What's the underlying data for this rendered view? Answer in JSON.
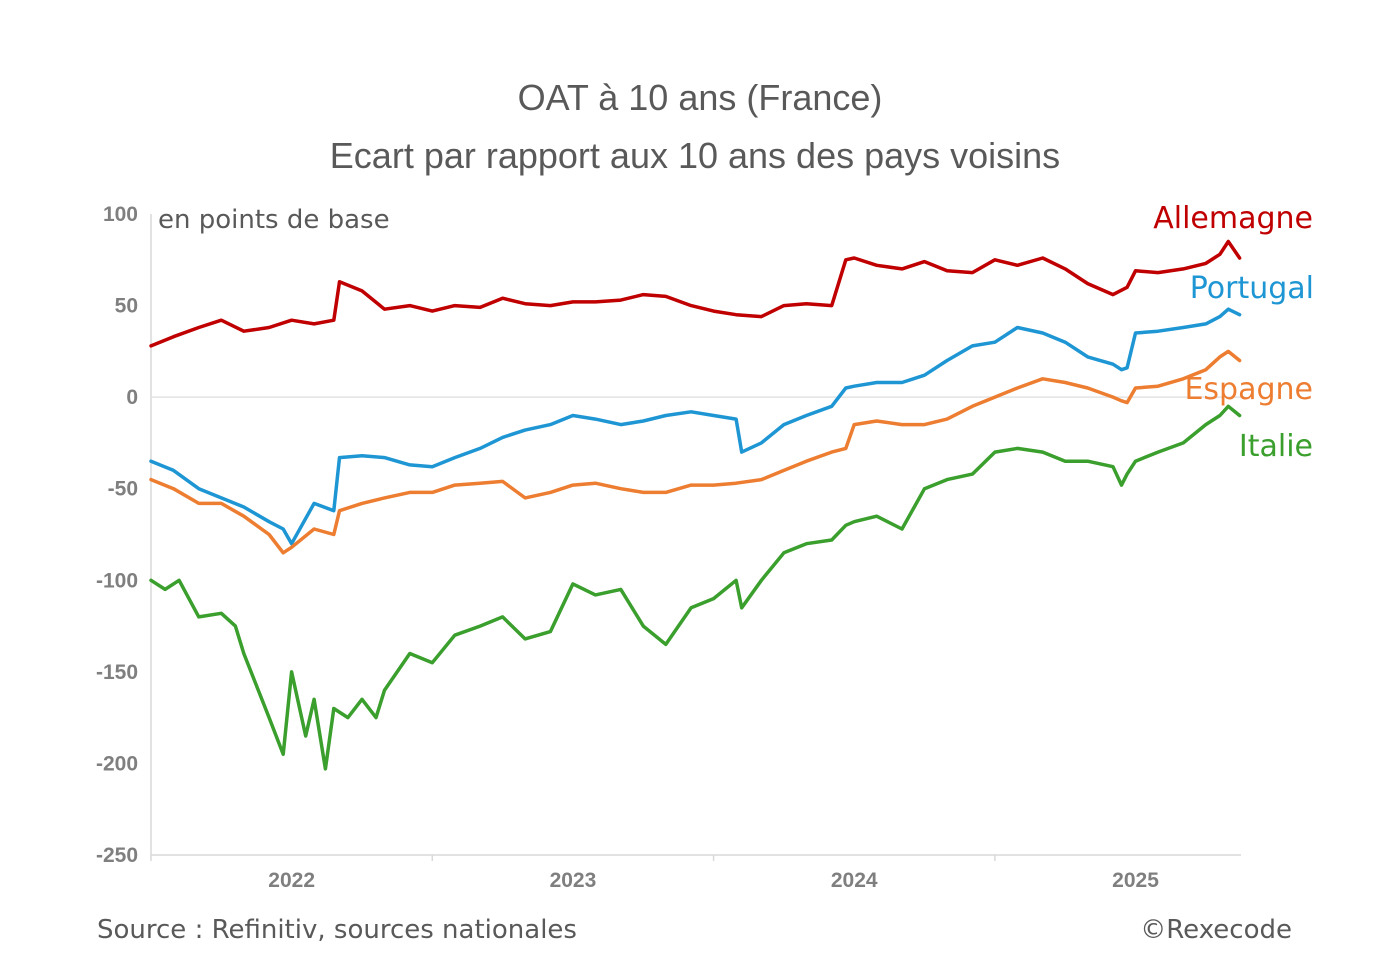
{
  "chart_data": {
    "type": "line",
    "title": "OAT à 10 ans (France)",
    "subtitle": "Ecart par rapport aux 10 ans des pays voisins",
    "unit_label": "en points de base",
    "source": "Source : Refinitiv, sources nationales",
    "credit": "©Rexecode",
    "ylim": [
      -250,
      100
    ],
    "yticks": [
      100,
      50,
      0,
      -50,
      -100,
      -150,
      -200,
      -250
    ],
    "ytick_labels": [
      "100",
      "50",
      "0",
      "-50",
      "-100",
      "-150",
      "-200",
      "-250"
    ],
    "xlim": [
      2021.5,
      2025.375
    ],
    "xticks": [
      2022,
      2023,
      2024,
      2025
    ],
    "xtick_labels": [
      "2022",
      "2023",
      "2024",
      "2025"
    ],
    "zero_line": true,
    "grid": false,
    "series": [
      {
        "name": "Allemagne",
        "color": "#c00000",
        "x": [
          2021.5,
          2021.58,
          2021.67,
          2021.75,
          2021.83,
          2021.92,
          2022.0,
          2022.08,
          2022.15,
          2022.17,
          2022.25,
          2022.33,
          2022.42,
          2022.5,
          2022.58,
          2022.67,
          2022.75,
          2022.83,
          2022.92,
          2023.0,
          2023.08,
          2023.17,
          2023.25,
          2023.33,
          2023.42,
          2023.5,
          2023.58,
          2023.67,
          2023.75,
          2023.83,
          2023.92,
          2023.97,
          2024.0,
          2024.08,
          2024.17,
          2024.25,
          2024.33,
          2024.42,
          2024.5,
          2024.58,
          2024.67,
          2024.75,
          2024.83,
          2024.92,
          2024.97,
          2025.0,
          2025.08,
          2025.17,
          2025.25,
          2025.3,
          2025.33,
          2025.37
        ],
        "values": [
          28,
          33,
          38,
          42,
          36,
          38,
          42,
          40,
          42,
          63,
          58,
          48,
          50,
          47,
          50,
          49,
          54,
          51,
          50,
          52,
          52,
          53,
          56,
          55,
          50,
          47,
          45,
          44,
          50,
          51,
          50,
          75,
          76,
          72,
          70,
          74,
          69,
          68,
          75,
          72,
          76,
          70,
          62,
          56,
          60,
          69,
          68,
          70,
          73,
          78,
          85,
          76
        ]
      },
      {
        "name": "Portugal",
        "color": "#1f96d4",
        "x": [
          2021.5,
          2021.58,
          2021.67,
          2021.75,
          2021.83,
          2021.92,
          2021.97,
          2022.0,
          2022.08,
          2022.15,
          2022.17,
          2022.25,
          2022.33,
          2022.42,
          2022.5,
          2022.58,
          2022.67,
          2022.75,
          2022.83,
          2022.92,
          2023.0,
          2023.08,
          2023.17,
          2023.25,
          2023.33,
          2023.42,
          2023.5,
          2023.58,
          2023.6,
          2023.67,
          2023.75,
          2023.83,
          2023.92,
          2023.97,
          2024.0,
          2024.08,
          2024.17,
          2024.25,
          2024.33,
          2024.42,
          2024.5,
          2024.58,
          2024.67,
          2024.75,
          2024.83,
          2024.92,
          2024.95,
          2024.97,
          2025.0,
          2025.08,
          2025.17,
          2025.25,
          2025.3,
          2025.33,
          2025.37
        ],
        "values": [
          -35,
          -40,
          -50,
          -55,
          -60,
          -68,
          -72,
          -80,
          -58,
          -62,
          -33,
          -32,
          -33,
          -37,
          -38,
          -33,
          -28,
          -22,
          -18,
          -15,
          -10,
          -12,
          -15,
          -13,
          -10,
          -8,
          -10,
          -12,
          -30,
          -25,
          -15,
          -10,
          -5,
          5,
          6,
          8,
          8,
          12,
          20,
          28,
          30,
          38,
          35,
          30,
          22,
          18,
          15,
          16,
          35,
          36,
          38,
          40,
          44,
          48,
          45
        ]
      },
      {
        "name": "Espagne",
        "color": "#ed7d31",
        "x": [
          2021.5,
          2021.58,
          2021.67,
          2021.75,
          2021.83,
          2021.92,
          2021.97,
          2022.0,
          2022.08,
          2022.15,
          2022.17,
          2022.25,
          2022.33,
          2022.42,
          2022.5,
          2022.58,
          2022.67,
          2022.75,
          2022.83,
          2022.92,
          2023.0,
          2023.08,
          2023.17,
          2023.25,
          2023.33,
          2023.42,
          2023.5,
          2023.58,
          2023.67,
          2023.75,
          2023.83,
          2023.92,
          2023.97,
          2024.0,
          2024.08,
          2024.17,
          2024.25,
          2024.33,
          2024.42,
          2024.5,
          2024.58,
          2024.67,
          2024.75,
          2024.83,
          2024.92,
          2024.95,
          2024.97,
          2025.0,
          2025.08,
          2025.17,
          2025.25,
          2025.3,
          2025.33,
          2025.37
        ],
        "values": [
          -45,
          -50,
          -58,
          -58,
          -65,
          -75,
          -85,
          -82,
          -72,
          -75,
          -62,
          -58,
          -55,
          -52,
          -52,
          -48,
          -47,
          -46,
          -55,
          -52,
          -48,
          -47,
          -50,
          -52,
          -52,
          -48,
          -48,
          -47,
          -45,
          -40,
          -35,
          -30,
          -28,
          -15,
          -13,
          -15,
          -15,
          -12,
          -5,
          0,
          5,
          10,
          8,
          5,
          0,
          -2,
          -3,
          5,
          6,
          10,
          15,
          22,
          25,
          20
        ]
      },
      {
        "name": "Italie",
        "color": "#3a9f2d",
        "x": [
          2021.5,
          2021.55,
          2021.6,
          2021.67,
          2021.75,
          2021.8,
          2021.83,
          2021.92,
          2021.97,
          2022.0,
          2022.05,
          2022.08,
          2022.12,
          2022.15,
          2022.2,
          2022.25,
          2022.3,
          2022.33,
          2022.42,
          2022.5,
          2022.58,
          2022.67,
          2022.75,
          2022.83,
          2022.92,
          2023.0,
          2023.08,
          2023.17,
          2023.25,
          2023.33,
          2023.42,
          2023.5,
          2023.58,
          2023.6,
          2023.67,
          2023.75,
          2023.83,
          2023.92,
          2023.97,
          2024.0,
          2024.08,
          2024.17,
          2024.25,
          2024.33,
          2024.42,
          2024.5,
          2024.58,
          2024.67,
          2024.75,
          2024.83,
          2024.92,
          2024.95,
          2024.97,
          2025.0,
          2025.08,
          2025.17,
          2025.25,
          2025.3,
          2025.33,
          2025.37
        ],
        "values": [
          -100,
          -105,
          -100,
          -120,
          -118,
          -125,
          -140,
          -175,
          -195,
          -150,
          -185,
          -165,
          -203,
          -170,
          -175,
          -165,
          -175,
          -160,
          -140,
          -145,
          -130,
          -125,
          -120,
          -132,
          -128,
          -102,
          -108,
          -105,
          -125,
          -135,
          -115,
          -110,
          -100,
          -115,
          -100,
          -85,
          -80,
          -78,
          -70,
          -68,
          -65,
          -72,
          -50,
          -45,
          -42,
          -30,
          -28,
          -30,
          -35,
          -35,
          -38,
          -48,
          -42,
          -35,
          -30,
          -25,
          -15,
          -10,
          -5,
          -10
        ]
      }
    ]
  }
}
